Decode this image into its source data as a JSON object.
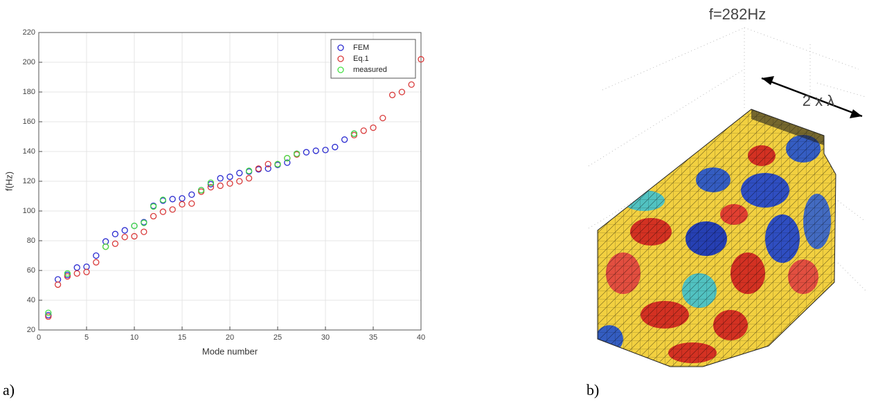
{
  "chart_data": {
    "type": "scatter",
    "xlabel": "Mode number",
    "ylabel": "f(Hz)",
    "xlim": [
      0,
      40
    ],
    "ylim": [
      20,
      220
    ],
    "xticks": [
      0,
      5,
      10,
      15,
      20,
      25,
      30,
      35,
      40
    ],
    "yticks": [
      20,
      40,
      60,
      80,
      100,
      120,
      140,
      160,
      180,
      200,
      220
    ],
    "grid": true,
    "legend": "upper right",
    "series": [
      {
        "name": "FEM",
        "color": "#2a2ad0",
        "x": [
          1,
          2,
          3,
          4,
          5,
          6,
          7,
          8,
          9,
          10,
          11,
          12,
          13,
          14,
          15,
          16,
          17,
          18,
          19,
          20,
          21,
          22,
          23,
          24,
          25,
          26,
          27,
          28,
          29,
          30,
          31,
          32,
          33
        ],
        "values": [
          30,
          54,
          57,
          62,
          62.5,
          70,
          79.5,
          84.5,
          87,
          90,
          92.5,
          103.5,
          107,
          108,
          108.5,
          111,
          114,
          118,
          122,
          123,
          125.5,
          126.5,
          128,
          128.5,
          131,
          132.5,
          138.5,
          139.5,
          140.5,
          141,
          143,
          148,
          152
        ]
      },
      {
        "name": "Eq.1",
        "color": "#d93a3a",
        "x": [
          1,
          2,
          3,
          4,
          5,
          6,
          7,
          8,
          9,
          10,
          11,
          12,
          13,
          14,
          15,
          16,
          17,
          18,
          19,
          20,
          21,
          22,
          23,
          24,
          25,
          26,
          27,
          33,
          34,
          35,
          36,
          37,
          38,
          39,
          40
        ],
        "values": [
          29,
          50.5,
          56,
          58,
          59,
          65.5,
          76,
          78,
          82.5,
          83,
          86,
          96.5,
          99.5,
          101,
          104.5,
          105,
          113,
          116,
          117,
          118.5,
          120,
          122,
          128.5,
          131.5,
          131.5,
          135.5,
          138,
          151,
          154,
          156,
          162.5,
          178,
          180,
          185,
          202
        ]
      },
      {
        "name": "measured",
        "color": "#45e045",
        "x": [
          1,
          3,
          7,
          10,
          11,
          12,
          13,
          17,
          18,
          22,
          25,
          26,
          27,
          33
        ],
        "values": [
          31.5,
          58,
          76,
          90,
          92,
          103,
          107.5,
          114,
          119,
          127,
          131.5,
          135.5,
          138.5,
          152
        ]
      }
    ]
  },
  "figure": {
    "label_a": "a)",
    "label_b": "b)",
    "image_title": "f=282Hz",
    "annotation": "2 x λ"
  }
}
